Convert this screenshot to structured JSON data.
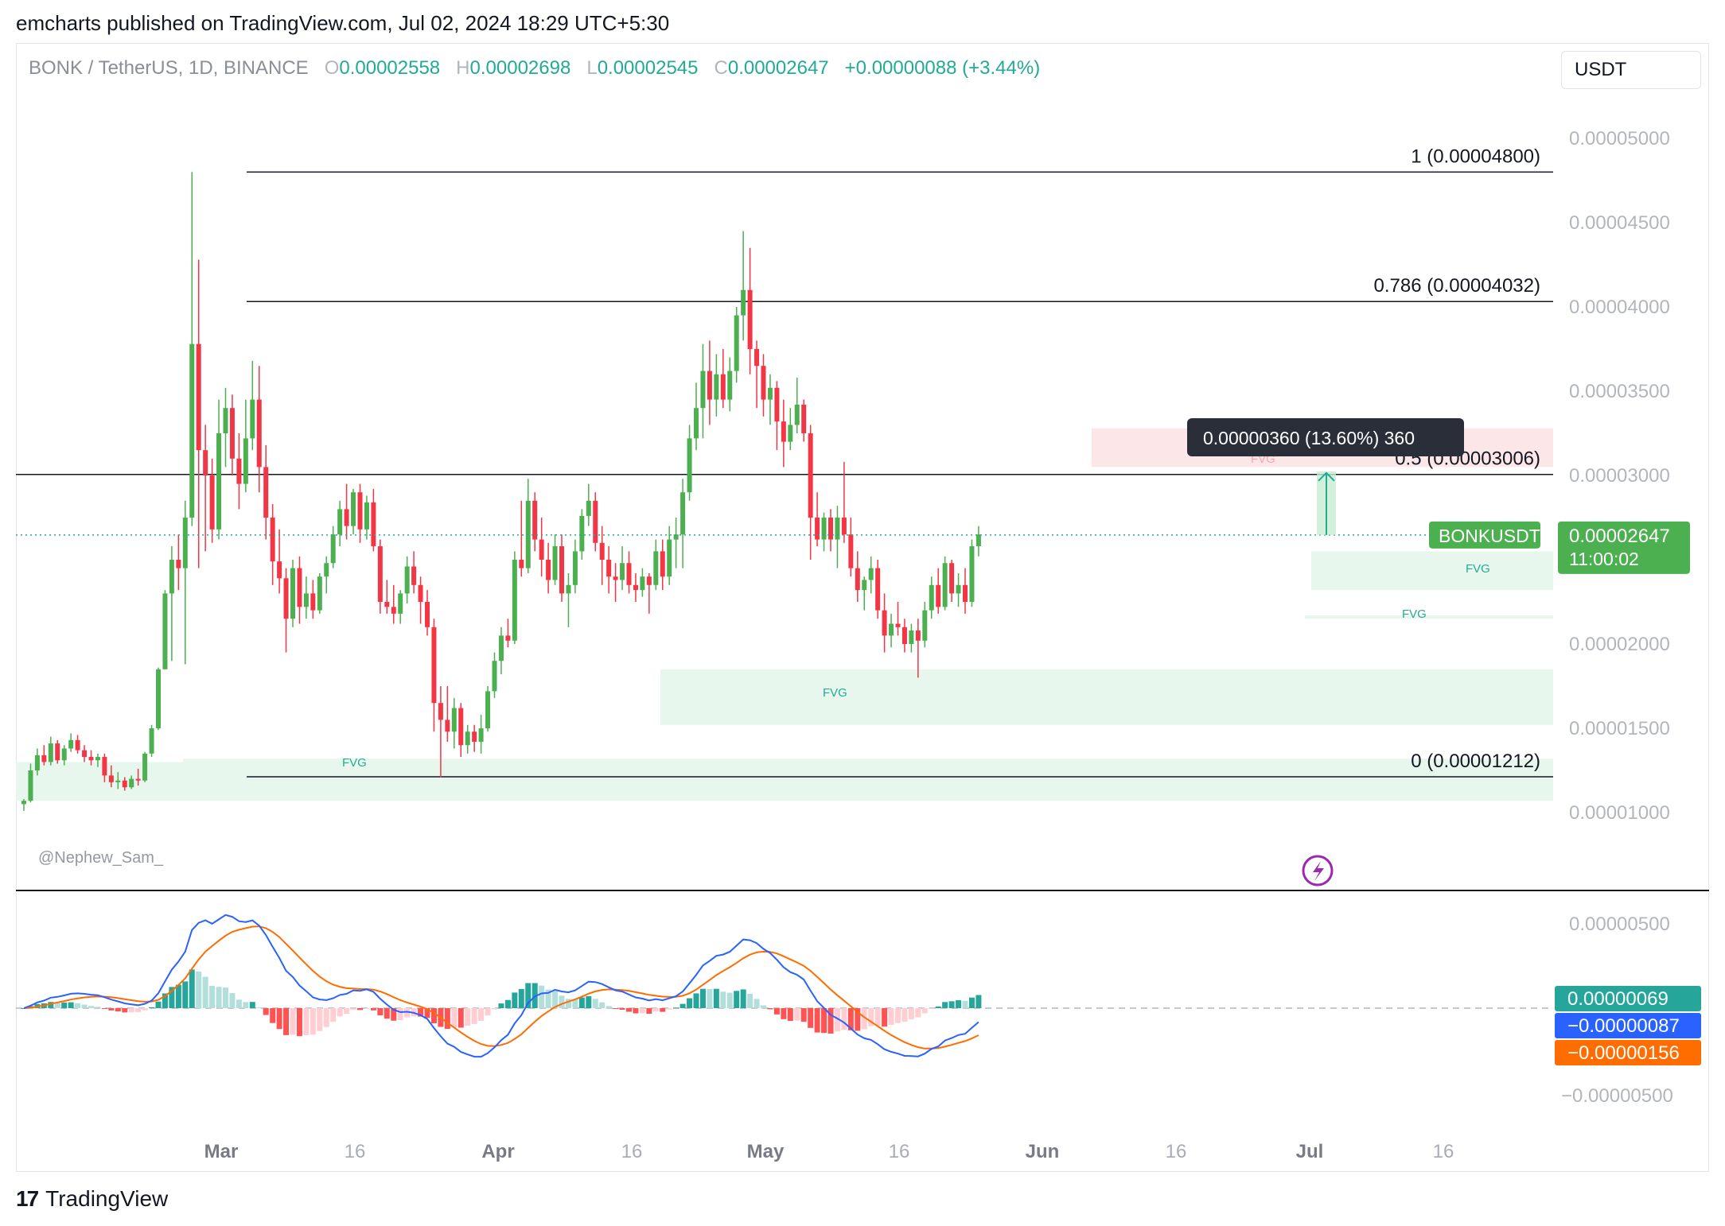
{
  "header": {
    "published": "emcharts published on TradingView.com, Jul 02, 2024 18:29 UTC+5:30"
  },
  "legend": {
    "symbol": "BONK / TetherUS, 1D, BINANCE",
    "o_label": "O",
    "open": "0.00002558",
    "h_label": "H",
    "high": "0.00002698",
    "l_label": "L",
    "low": "0.00002545",
    "c_label": "C",
    "close": "0.00002647",
    "change": "+0.00000088 (+3.44%)"
  },
  "currency": "USDT",
  "watermark": "@Nephew_Sam_",
  "footer": {
    "brand": "TradingView"
  },
  "colors": {
    "up": "#22ab94",
    "down": "#f23645",
    "up_candle": "#4caf50",
    "macd": "#2962ff",
    "signal": "#ff6d00",
    "fvg_green": "#e8f7ee",
    "fvg_red": "#fde6e8"
  },
  "chart_data": {
    "type": "candlestick",
    "price_axis": {
      "ticks": [
        "0.00005000",
        "0.00004500",
        "0.00004000",
        "0.00003500",
        "0.00003000",
        "0.00002500",
        "0.00002000",
        "0.00001500",
        "0.00001000"
      ],
      "range": [
        8.2e-06,
        5.3e-06
      ]
    },
    "x_axis": {
      "ticks": [
        "Mar",
        "16",
        "Apr",
        "16",
        "May",
        "16",
        "Jun",
        "16",
        "Jul",
        "16"
      ]
    },
    "fib_levels": [
      {
        "label": "1 (0.00004800)",
        "value": 4.8e-05
      },
      {
        "label": "0.786 (0.00004032)",
        "value": 4.032e-05
      },
      {
        "label": "0.5 (0.00003006)",
        "value": 3.006e-05
      },
      {
        "label": "0 (0.00001212)",
        "value": 1.212e-05
      }
    ],
    "fvg_label": "FVG",
    "measure_label": "0.00000360 (13.60%) 360",
    "last_price": {
      "symbol": "BONKUSDT",
      "price": "0.00002647",
      "countdown": "11:00:02"
    },
    "macd_axis": {
      "ticks": [
        "0.00000500",
        "−0.00000500"
      ]
    },
    "macd_values": {
      "histogram": "0.00000069",
      "macd": "−0.00000087",
      "signal": "−0.00000156"
    },
    "candles": [
      [
        1.05e-05,
        1.08e-05,
        1.01e-05,
        1.07e-05
      ],
      [
        1.07e-05,
        1.29e-05,
        1.06e-05,
        1.25e-05
      ],
      [
        1.25e-05,
        1.38e-05,
        1.22e-05,
        1.34e-05
      ],
      [
        1.34e-05,
        1.4e-05,
        1.28e-05,
        1.3e-05
      ],
      [
        1.3e-05,
        1.45e-05,
        1.28e-05,
        1.41e-05
      ],
      [
        1.41e-05,
        1.43e-05,
        1.29e-05,
        1.31e-05
      ],
      [
        1.31e-05,
        1.4e-05,
        1.28e-05,
        1.38e-05
      ],
      [
        1.38e-05,
        1.47e-05,
        1.36e-05,
        1.43e-05
      ],
      [
        1.43e-05,
        1.46e-05,
        1.35e-05,
        1.37e-05
      ],
      [
        1.37e-05,
        1.4e-05,
        1.3e-05,
        1.33e-05
      ],
      [
        1.33e-05,
        1.37e-05,
        1.28e-05,
        1.31e-05
      ],
      [
        1.31e-05,
        1.35e-05,
        1.27e-05,
        1.33e-05
      ],
      [
        1.33e-05,
        1.35e-05,
        1.18e-05,
        1.22e-05
      ],
      [
        1.22e-05,
        1.28e-05,
        1.15e-05,
        1.18e-05
      ],
      [
        1.18e-05,
        1.24e-05,
        1.14e-05,
        1.19e-05
      ],
      [
        1.19e-05,
        1.21e-05,
        1.13e-05,
        1.15e-05
      ],
      [
        1.15e-05,
        1.22e-05,
        1.14e-05,
        1.2e-05
      ],
      [
        1.2e-05,
        1.26e-05,
        1.16e-05,
        1.19e-05
      ],
      [
        1.19e-05,
        1.36e-05,
        1.18e-05,
        1.35e-05
      ],
      [
        1.35e-05,
        1.52e-05,
        1.33e-05,
        1.5e-05
      ],
      [
        1.5e-05,
        1.86e-05,
        1.49e-05,
        1.85e-05
      ],
      [
        1.85e-05,
        2.32e-05,
        1.85e-05,
        2.3e-05
      ],
      [
        2.3e-05,
        2.58e-05,
        1.9e-05,
        2.5e-05
      ],
      [
        2.5e-05,
        2.65e-05,
        2.32e-05,
        2.45e-05
      ],
      [
        2.45e-05,
        2.85e-05,
        1.88e-05,
        2.75e-05
      ],
      [
        2.75e-05,
        4.8e-05,
        2.7e-05,
        3.78e-05
      ],
      [
        3.78e-05,
        4.28e-05,
        2.45e-05,
        3.15e-05
      ],
      [
        3.15e-05,
        3.3e-05,
        2.55e-05,
        3e-05
      ],
      [
        3e-05,
        3.1e-05,
        2.6e-05,
        2.68e-05
      ],
      [
        2.68e-05,
        3.45e-05,
        2.62e-05,
        3.25e-05
      ],
      [
        3.25e-05,
        3.52e-05,
        3.05e-05,
        3.4e-05
      ],
      [
        3.4e-05,
        3.48e-05,
        3e-05,
        3.1e-05
      ],
      [
        3.1e-05,
        3.25e-05,
        2.8e-05,
        2.95e-05
      ],
      [
        2.95e-05,
        3.45e-05,
        2.9e-05,
        3.22e-05
      ],
      [
        3.22e-05,
        3.68e-05,
        3.15e-05,
        3.45e-05
      ],
      [
        3.45e-05,
        3.65e-05,
        2.9e-05,
        3.05e-05
      ],
      [
        3.05e-05,
        3.18e-05,
        2.62e-05,
        2.75e-05
      ],
      [
        2.75e-05,
        2.83e-05,
        2.35e-05,
        2.49e-05
      ],
      [
        2.49e-05,
        2.68e-05,
        2.3e-05,
        2.39e-05
      ],
      [
        2.39e-05,
        2.45e-05,
        1.95e-05,
        2.15e-05
      ],
      [
        2.15e-05,
        2.5e-05,
        2.1e-05,
        2.45e-05
      ],
      [
        2.45e-05,
        2.52e-05,
        2.12e-05,
        2.22e-05
      ],
      [
        2.22e-05,
        2.4e-05,
        2.15e-05,
        2.3e-05
      ],
      [
        2.3e-05,
        2.38e-05,
        2.15e-05,
        2.2e-05
      ],
      [
        2.2e-05,
        2.42e-05,
        2.18e-05,
        2.4e-05
      ],
      [
        2.4e-05,
        2.52e-05,
        2.3e-05,
        2.48e-05
      ],
      [
        2.48e-05,
        2.7e-05,
        2.45e-05,
        2.65e-05
      ],
      [
        2.65e-05,
        2.85e-05,
        2.58e-05,
        2.8e-05
      ],
      [
        2.8e-05,
        2.95e-05,
        2.62e-05,
        2.7e-05
      ],
      [
        2.7e-05,
        2.92e-05,
        2.65e-05,
        2.9e-05
      ],
      [
        2.9e-05,
        2.95e-05,
        2.6e-05,
        2.68e-05
      ],
      [
        2.68e-05,
        2.88e-05,
        2.62e-05,
        2.84e-05
      ],
      [
        2.84e-05,
        2.92e-05,
        2.55e-05,
        2.58e-05
      ],
      [
        2.58e-05,
        2.62e-05,
        2.18e-05,
        2.25e-05
      ],
      [
        2.25e-05,
        2.38e-05,
        2.18e-05,
        2.22e-05
      ],
      [
        2.22e-05,
        2.35e-05,
        2.12e-05,
        2.18e-05
      ],
      [
        2.18e-05,
        2.32e-05,
        2.12e-05,
        2.3e-05
      ],
      [
        2.3e-05,
        2.52e-05,
        2.24e-05,
        2.46e-05
      ],
      [
        2.46e-05,
        2.55e-05,
        2.3e-05,
        2.35e-05
      ],
      [
        2.35e-05,
        2.4e-05,
        2.12e-05,
        2.25e-05
      ],
      [
        2.25e-05,
        2.32e-05,
        2.05e-05,
        2.1e-05
      ],
      [
        2.1e-05,
        2.15e-05,
        1.48e-05,
        1.65e-05
      ],
      [
        1.65e-05,
        1.75e-05,
        1.21e-05,
        1.55e-05
      ],
      [
        1.55e-05,
        1.75e-05,
        1.42e-05,
        1.48e-05
      ],
      [
        1.48e-05,
        1.68e-05,
        1.38e-05,
        1.62e-05
      ],
      [
        1.62e-05,
        1.65e-05,
        1.33e-05,
        1.4e-05
      ],
      [
        1.4e-05,
        1.52e-05,
        1.35e-05,
        1.48e-05
      ],
      [
        1.48e-05,
        1.52e-05,
        1.36e-05,
        1.42e-05
      ],
      [
        1.42e-05,
        1.58e-05,
        1.35e-05,
        1.5e-05
      ],
      [
        1.5e-05,
        1.75e-05,
        1.48e-05,
        1.72e-05
      ],
      [
        1.72e-05,
        1.95e-05,
        1.68e-05,
        1.9e-05
      ],
      [
        1.9e-05,
        2.1e-05,
        1.82e-05,
        2.05e-05
      ],
      [
        2.05e-05,
        2.15e-05,
        1.98e-05,
        2.02e-05
      ],
      [
        2.02e-05,
        2.55e-05,
        2e-05,
        2.5e-05
      ],
      [
        2.5e-05,
        2.85e-05,
        2.4e-05,
        2.45e-05
      ],
      [
        2.45e-05,
        2.98e-05,
        2.42e-05,
        2.85e-05
      ],
      [
        2.85e-05,
        2.9e-05,
        2.55e-05,
        2.62e-05
      ],
      [
        2.62e-05,
        2.75e-05,
        2.4e-05,
        2.5e-05
      ],
      [
        2.5e-05,
        2.6e-05,
        2.3e-05,
        2.38e-05
      ],
      [
        2.38e-05,
        2.65e-05,
        2.35e-05,
        2.58e-05
      ],
      [
        2.58e-05,
        2.65e-05,
        2.25e-05,
        2.3e-05
      ],
      [
        2.3e-05,
        2.42e-05,
        2.1e-05,
        2.35e-05
      ],
      [
        2.35e-05,
        2.62e-05,
        2.3e-05,
        2.55e-05
      ],
      [
        2.55e-05,
        2.8e-05,
        2.5e-05,
        2.76e-05
      ],
      [
        2.76e-05,
        2.95e-05,
        2.7e-05,
        2.85e-05
      ],
      [
        2.85e-05,
        2.9e-05,
        2.55e-05,
        2.6e-05
      ],
      [
        2.6e-05,
        2.7e-05,
        2.35e-05,
        2.5e-05
      ],
      [
        2.5e-05,
        2.58e-05,
        2.3e-05,
        2.4e-05
      ],
      [
        2.4e-05,
        2.48e-05,
        2.25e-05,
        2.38e-05
      ],
      [
        2.38e-05,
        2.58e-05,
        2.32e-05,
        2.48e-05
      ],
      [
        2.48e-05,
        2.55e-05,
        2.3e-05,
        2.35e-05
      ],
      [
        2.35e-05,
        2.42e-05,
        2.25e-05,
        2.32e-05
      ],
      [
        2.32e-05,
        2.45e-05,
        2.28e-05,
        2.4e-05
      ],
      [
        2.4e-05,
        2.42e-05,
        2.18e-05,
        2.35e-05
      ],
      [
        2.35e-05,
        2.62e-05,
        2.32e-05,
        2.55e-05
      ],
      [
        2.55e-05,
        2.62e-05,
        2.32e-05,
        2.4e-05
      ],
      [
        2.4e-05,
        2.7e-05,
        2.35e-05,
        2.62e-05
      ],
      [
        2.62e-05,
        2.75e-05,
        2.45e-05,
        2.65e-05
      ],
      [
        2.65e-05,
        2.98e-05,
        2.45e-05,
        2.9e-05
      ],
      [
        2.9e-05,
        3.3e-05,
        2.85e-05,
        3.22e-05
      ],
      [
        3.22e-05,
        3.55e-05,
        3.15e-05,
        3.4e-05
      ],
      [
        3.4e-05,
        3.78e-05,
        3.22e-05,
        3.62e-05
      ],
      [
        3.62e-05,
        3.8e-05,
        3.3e-05,
        3.45e-05
      ],
      [
        3.45e-05,
        3.72e-05,
        3.35e-05,
        3.6e-05
      ],
      [
        3.6e-05,
        3.75e-05,
        3.4e-05,
        3.45e-05
      ],
      [
        3.45e-05,
        3.7e-05,
        3.38e-05,
        3.62e-05
      ],
      [
        3.62e-05,
        4e-05,
        3.55e-05,
        3.95e-05
      ],
      [
        3.95e-05,
        4.45e-05,
        3.8e-05,
        4.1e-05
      ],
      [
        4.1e-05,
        4.35e-05,
        3.6e-05,
        3.75e-05
      ],
      [
        3.75e-05,
        3.8e-05,
        3.4e-05,
        3.65e-05
      ],
      [
        3.65e-05,
        3.72e-05,
        3.35e-05,
        3.45e-05
      ],
      [
        3.45e-05,
        3.6e-05,
        3.3e-05,
        3.52e-05
      ],
      [
        3.52e-05,
        3.56e-05,
        3.15e-05,
        3.32e-05
      ],
      [
        3.32e-05,
        3.45e-05,
        3.05e-05,
        3.2e-05
      ],
      [
        3.2e-05,
        3.4e-05,
        3.15e-05,
        3.3e-05
      ],
      [
        3.3e-05,
        3.58e-05,
        3.25e-05,
        3.42e-05
      ],
      [
        3.42e-05,
        3.45e-05,
        3.2e-05,
        3.25e-05
      ],
      [
        3.25e-05,
        3.3e-05,
        2.5e-05,
        2.75e-05
      ],
      [
        2.75e-05,
        2.9e-05,
        2.58e-05,
        2.62e-05
      ],
      [
        2.62e-05,
        2.78e-05,
        2.55e-05,
        2.75e-05
      ],
      [
        2.75e-05,
        2.8e-05,
        2.55e-05,
        2.62e-05
      ],
      [
        2.62e-05,
        2.82e-05,
        2.45e-05,
        2.75e-05
      ],
      [
        2.75e-05,
        3.08e-05,
        2.6e-05,
        2.65e-05
      ],
      [
        2.65e-05,
        2.75e-05,
        2.4e-05,
        2.45e-05
      ],
      [
        2.45e-05,
        2.55e-05,
        2.25e-05,
        2.32e-05
      ],
      [
        2.32e-05,
        2.4e-05,
        2.2e-05,
        2.38e-05
      ],
      [
        2.38e-05,
        2.52e-05,
        2.3e-05,
        2.45e-05
      ],
      [
        2.45e-05,
        2.5e-05,
        2.15e-05,
        2.2e-05
      ],
      [
        2.2e-05,
        2.3e-05,
        1.95e-05,
        2.05e-05
      ],
      [
        2.05e-05,
        2.18e-05,
        1.98e-05,
        2.12e-05
      ],
      [
        2.12e-05,
        2.25e-05,
        2.05e-05,
        2.1e-05
      ],
      [
        2.1e-05,
        2.15e-05,
        1.95e-05,
        2e-05
      ],
      [
        2e-05,
        2.12e-05,
        1.95e-05,
        2.08e-05
      ],
      [
        2.08e-05,
        2.15e-05,
        1.8e-05,
        2.02e-05
      ],
      [
        2.02e-05,
        2.25e-05,
        1.98e-05,
        2.2e-05
      ],
      [
        2.2e-05,
        2.4e-05,
        2.15e-05,
        2.35e-05
      ],
      [
        2.35e-05,
        2.45e-05,
        2.18e-05,
        2.22e-05
      ],
      [
        2.22e-05,
        2.52e-05,
        2.2e-05,
        2.48e-05
      ],
      [
        2.48e-05,
        2.5e-05,
        2.25e-05,
        2.3e-05
      ],
      [
        2.3e-05,
        2.42e-05,
        2.22e-05,
        2.35e-05
      ],
      [
        2.35e-05,
        2.45e-05,
        2.18e-05,
        2.25e-05
      ],
      [
        2.25e-05,
        2.62e-05,
        2.22e-05,
        2.58e-05
      ],
      [
        2.58e-05,
        2.7e-05,
        2.52e-05,
        2.65e-05
      ]
    ]
  }
}
